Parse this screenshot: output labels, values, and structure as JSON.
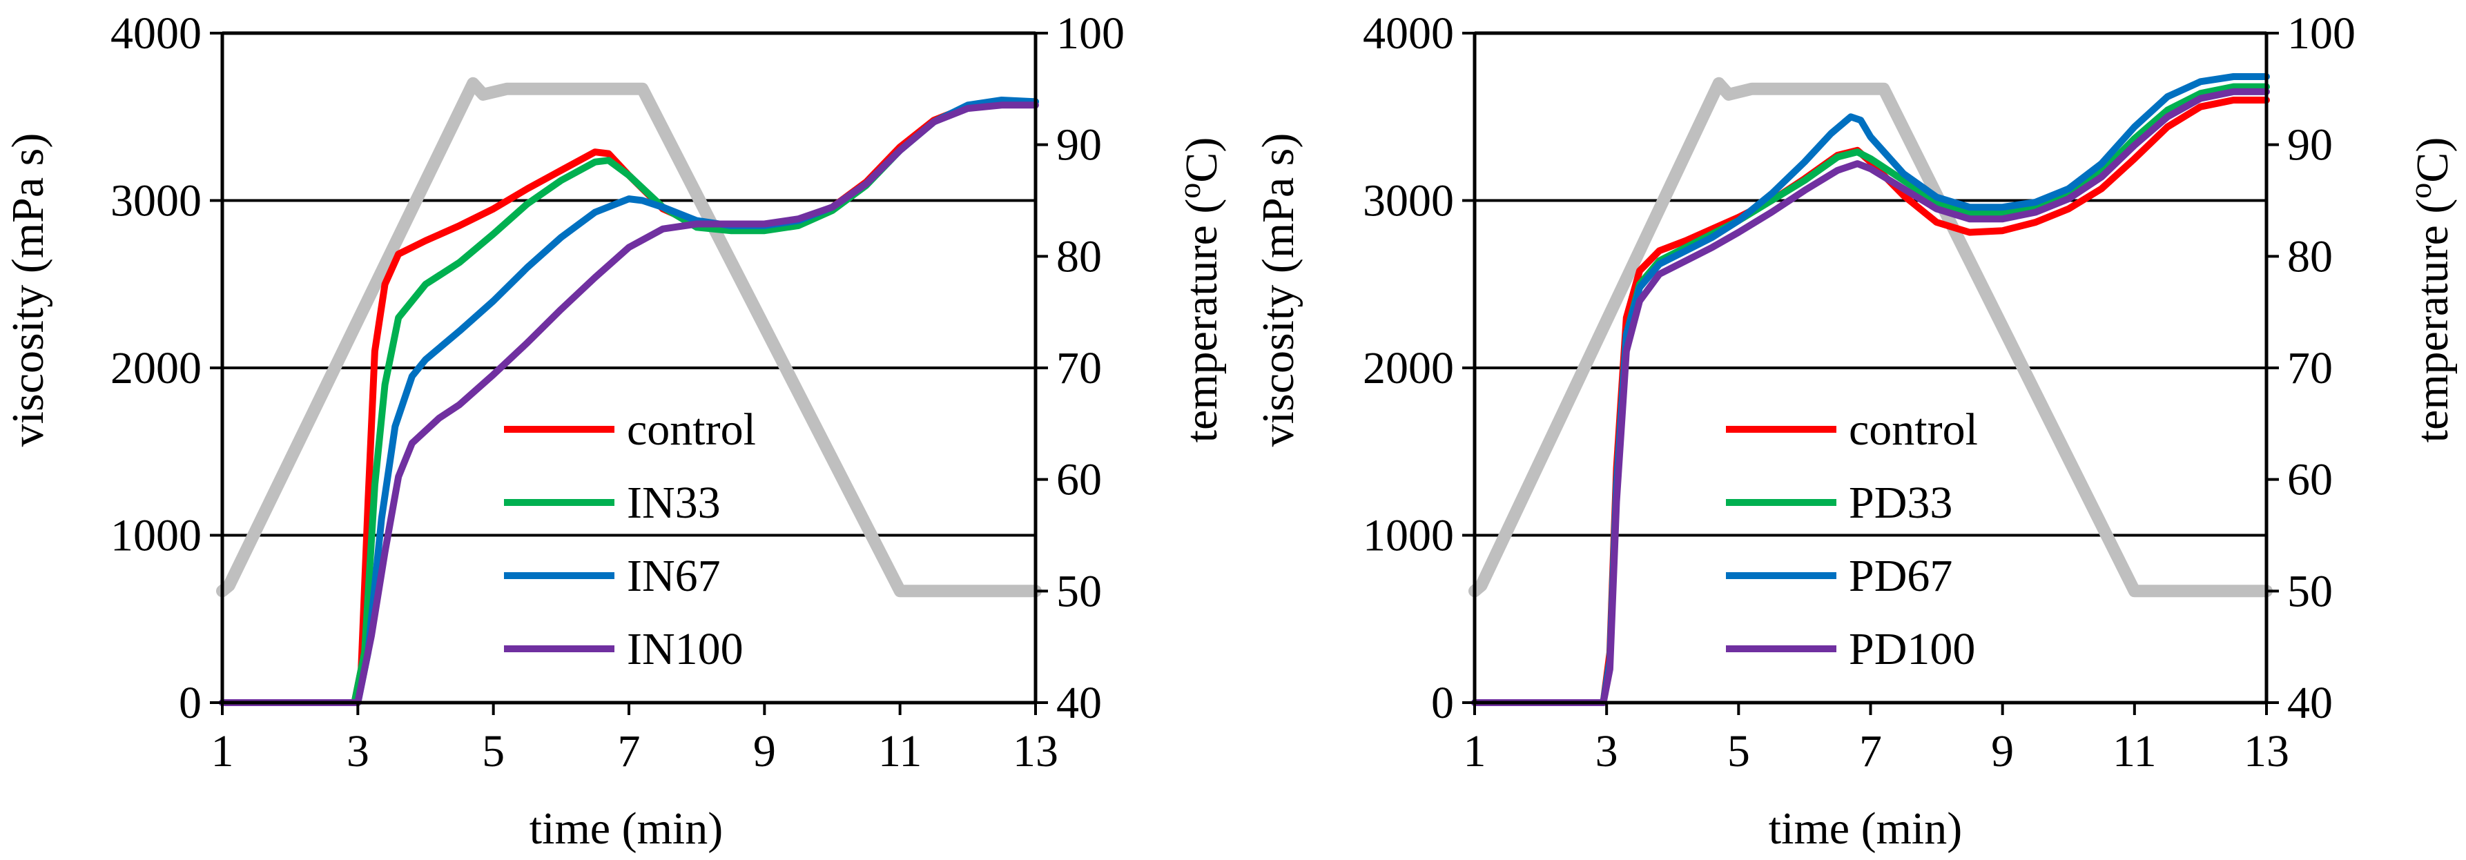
{
  "chart_data": [
    {
      "type": "line",
      "xlabel": "time (min)",
      "ylabel": "viscosity (mPa s)",
      "y2label": "temperature (°C)",
      "y2label_parts": [
        "temperature (",
        "o",
        "C)"
      ],
      "xlim": [
        1,
        13
      ],
      "ylim": [
        0,
        4000
      ],
      "y2lim": [
        40,
        100
      ],
      "xticks": [
        "1",
        "3",
        "5",
        "7",
        "9",
        "11",
        "13"
      ],
      "yticks": [
        "0",
        "1000",
        "2000",
        "3000",
        "4000"
      ],
      "y2ticks": [
        "40",
        "50",
        "60",
        "70",
        "80",
        "90",
        "100"
      ],
      "gridlines_y": [
        1000,
        2000,
        3000
      ],
      "legend_position": "center",
      "temperature": {
        "name": "temperature",
        "color": "#bfbfbf",
        "x": [
          1,
          1.1,
          4.7,
          4.85,
          5.2,
          7.2,
          11,
          13
        ],
        "y": [
          50,
          50.5,
          95.5,
          94.5,
          95,
          95,
          50,
          50
        ]
      },
      "series": [
        {
          "name": "control",
          "color": "#ff0000",
          "x": [
            1,
            2.95,
            3.05,
            3.15,
            3.25,
            3.4,
            3.6,
            4,
            4.5,
            5,
            5.5,
            6,
            6.5,
            6.7,
            7,
            7.5,
            8,
            8.5,
            9,
            9.5,
            10,
            10.5,
            11,
            11.5,
            12,
            12.5,
            13
          ],
          "y": [
            0,
            0,
            200,
            1200,
            2100,
            2500,
            2680,
            2760,
            2850,
            2950,
            3070,
            3180,
            3290,
            3280,
            3150,
            2950,
            2860,
            2840,
            2840,
            2880,
            2960,
            3110,
            3320,
            3480,
            3560,
            3590,
            3590
          ]
        },
        {
          "name": "IN33",
          "color": "#00b050",
          "x": [
            1,
            2.95,
            3.1,
            3.25,
            3.4,
            3.6,
            4,
            4.5,
            5,
            5.5,
            6,
            6.5,
            6.7,
            7,
            7.5,
            8,
            8.5,
            9,
            9.5,
            10,
            10.5,
            11,
            11.5,
            12,
            12.5,
            13
          ],
          "y": [
            0,
            0,
            300,
            1300,
            1900,
            2300,
            2500,
            2630,
            2800,
            2980,
            3120,
            3230,
            3240,
            3150,
            2960,
            2840,
            2820,
            2820,
            2850,
            2940,
            3090,
            3300,
            3470,
            3560,
            3590,
            3590
          ]
        },
        {
          "name": "IN67",
          "color": "#0070c0",
          "x": [
            1,
            3,
            3.15,
            3.35,
            3.55,
            3.8,
            4,
            4.5,
            5,
            5.5,
            6,
            6.5,
            7,
            7.2,
            7.5,
            8,
            8.5,
            9,
            9.5,
            10,
            10.5,
            11,
            11.5,
            12,
            12.5,
            13
          ],
          "y": [
            0,
            0,
            300,
            1100,
            1650,
            1950,
            2050,
            2220,
            2400,
            2600,
            2780,
            2930,
            3010,
            3000,
            2960,
            2880,
            2850,
            2850,
            2880,
            2960,
            3100,
            3300,
            3470,
            3570,
            3600,
            3590
          ]
        },
        {
          "name": "IN100",
          "color": "#7030a0",
          "x": [
            1,
            3,
            3.2,
            3.4,
            3.6,
            3.8,
            4.2,
            4.5,
            5,
            5.5,
            6,
            6.5,
            7,
            7.5,
            8,
            8.5,
            9,
            9.5,
            10,
            10.5,
            11,
            11.5,
            12,
            12.5,
            13
          ],
          "y": [
            0,
            0,
            400,
            900,
            1350,
            1550,
            1700,
            1780,
            1960,
            2150,
            2350,
            2540,
            2720,
            2830,
            2860,
            2860,
            2860,
            2890,
            2960,
            3100,
            3300,
            3470,
            3550,
            3570,
            3570
          ]
        }
      ]
    },
    {
      "type": "line",
      "xlabel": "time (min)",
      "ylabel": "viscosity (mPa s)",
      "y2label": "temperature (°C)",
      "y2label_parts": [
        "temperature (",
        "o",
        "C)"
      ],
      "xlim": [
        1,
        13
      ],
      "ylim": [
        0,
        4000
      ],
      "y2lim": [
        40,
        100
      ],
      "xticks": [
        "1",
        "3",
        "5",
        "7",
        "9",
        "11",
        "13"
      ],
      "yticks": [
        "0",
        "1000",
        "2000",
        "3000",
        "4000"
      ],
      "y2ticks": [
        "40",
        "50",
        "60",
        "70",
        "80",
        "90",
        "100"
      ],
      "gridlines_y": [
        1000,
        2000,
        3000
      ],
      "legend_position": "center",
      "temperature": {
        "name": "temperature",
        "color": "#bfbfbf",
        "x": [
          1,
          1.1,
          4.7,
          4.85,
          5.2,
          7.2,
          11,
          13
        ],
        "y": [
          50,
          50.5,
          95.5,
          94.5,
          95,
          95,
          50,
          50
        ]
      },
      "series": [
        {
          "name": "control",
          "color": "#ff0000",
          "x": [
            1,
            2.95,
            3.05,
            3.15,
            3.3,
            3.5,
            3.8,
            4.2,
            4.6,
            5,
            5.5,
            6,
            6.5,
            6.8,
            7,
            7.5,
            8,
            8.5,
            9,
            9.5,
            10,
            10.5,
            11,
            11.5,
            12,
            12.5,
            13
          ],
          "y": [
            0,
            0,
            300,
            1400,
            2300,
            2580,
            2700,
            2760,
            2830,
            2900,
            3000,
            3130,
            3270,
            3300,
            3230,
            3030,
            2870,
            2810,
            2820,
            2870,
            2950,
            3070,
            3250,
            3440,
            3560,
            3600,
            3600
          ]
        },
        {
          "name": "PD33",
          "color": "#00b050",
          "x": [
            1,
            2.95,
            3.05,
            3.15,
            3.3,
            3.5,
            3.8,
            4.2,
            4.6,
            5,
            5.5,
            6,
            6.5,
            6.8,
            7,
            7.5,
            8,
            8.5,
            9,
            9.5,
            10,
            10.5,
            11,
            11.5,
            12,
            12.5,
            13
          ],
          "y": [
            0,
            0,
            250,
            1300,
            2200,
            2500,
            2640,
            2720,
            2800,
            2880,
            3000,
            3120,
            3260,
            3290,
            3250,
            3120,
            2990,
            2920,
            2920,
            2960,
            3040,
            3170,
            3370,
            3540,
            3640,
            3680,
            3680
          ]
        },
        {
          "name": "PD67",
          "color": "#0070c0",
          "x": [
            1,
            2.95,
            3.05,
            3.15,
            3.3,
            3.5,
            3.8,
            4.2,
            4.6,
            5,
            5.5,
            6,
            6.4,
            6.7,
            6.85,
            7,
            7.5,
            8,
            8.5,
            9,
            9.5,
            10,
            10.5,
            11,
            11.5,
            12,
            12.5,
            13
          ],
          "y": [
            0,
            0,
            250,
            1300,
            2200,
            2480,
            2620,
            2700,
            2780,
            2880,
            3040,
            3230,
            3400,
            3500,
            3480,
            3380,
            3160,
            3020,
            2960,
            2960,
            2990,
            3070,
            3220,
            3440,
            3620,
            3710,
            3740,
            3740
          ]
        },
        {
          "name": "PD100",
          "color": "#7030a0",
          "x": [
            1,
            2.95,
            3.05,
            3.15,
            3.3,
            3.5,
            3.8,
            4.2,
            4.6,
            5,
            5.5,
            6,
            6.5,
            6.8,
            7,
            7.5,
            8,
            8.5,
            9,
            9.5,
            10,
            10.5,
            11,
            11.5,
            12,
            12.5,
            13
          ],
          "y": [
            0,
            0,
            200,
            1200,
            2100,
            2400,
            2560,
            2640,
            2720,
            2810,
            2930,
            3060,
            3180,
            3220,
            3190,
            3070,
            2950,
            2890,
            2890,
            2930,
            3010,
            3140,
            3330,
            3500,
            3610,
            3650,
            3650
          ]
        }
      ]
    }
  ]
}
